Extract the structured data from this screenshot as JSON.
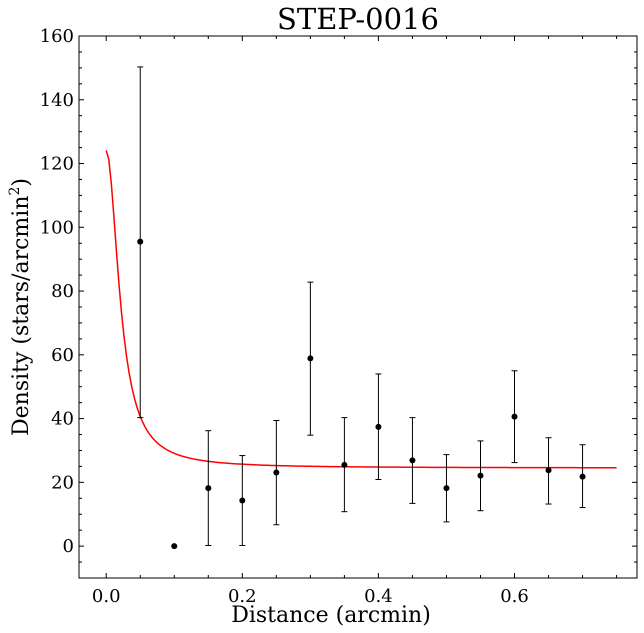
{
  "chart_data": {
    "type": "scatter",
    "title": "STEP-0016",
    "xlabel": "Distance (arcmin)",
    "ylabel_main": "Density (stars/arcmin",
    "ylabel_sup": "2",
    "ylabel_close": ")",
    "xlim": [
      -0.04,
      0.78
    ],
    "ylim": [
      -10,
      160
    ],
    "xticks": [
      0.0,
      0.2,
      0.4,
      0.6
    ],
    "xtick_labels": [
      "0.0",
      "0.2",
      "0.4",
      "0.6"
    ],
    "yticks": [
      0,
      20,
      40,
      60,
      80,
      100,
      120,
      140,
      160
    ],
    "ytick_labels": [
      "0",
      "20",
      "40",
      "60",
      "80",
      "100",
      "120",
      "140",
      "160"
    ],
    "series": [
      {
        "name": "data",
        "color": "#000000",
        "points": [
          {
            "x": 0.05,
            "y": 95.5,
            "lo": 40.3,
            "hi": 150.3
          },
          {
            "x": 0.1,
            "y": 0.0,
            "lo": null,
            "hi": null
          },
          {
            "x": 0.15,
            "y": 18.2,
            "lo": 0.2,
            "hi": 36.2
          },
          {
            "x": 0.2,
            "y": 14.3,
            "lo": 0.2,
            "hi": 28.4
          },
          {
            "x": 0.25,
            "y": 23.1,
            "lo": 6.7,
            "hi": 39.4
          },
          {
            "x": 0.3,
            "y": 58.9,
            "lo": 34.8,
            "hi": 82.8
          },
          {
            "x": 0.35,
            "y": 25.5,
            "lo": 10.8,
            "hi": 40.3
          },
          {
            "x": 0.4,
            "y": 37.4,
            "lo": 20.9,
            "hi": 54.0
          },
          {
            "x": 0.45,
            "y": 26.9,
            "lo": 13.4,
            "hi": 40.3
          },
          {
            "x": 0.5,
            "y": 18.2,
            "lo": 7.6,
            "hi": 28.7
          },
          {
            "x": 0.55,
            "y": 22.1,
            "lo": 11.1,
            "hi": 33.0
          },
          {
            "x": 0.6,
            "y": 40.6,
            "lo": 26.2,
            "hi": 55.0
          },
          {
            "x": 0.65,
            "y": 23.8,
            "lo": 13.2,
            "hi": 34.0
          },
          {
            "x": 0.7,
            "y": 21.8,
            "lo": 12.1,
            "hi": 31.8
          }
        ]
      },
      {
        "name": "fit",
        "color": "#ff0000",
        "model": {
          "background": 24.5,
          "amplitude": 99.6,
          "scale": 0.022,
          "x_start": 0.0,
          "x_end": 0.75
        }
      }
    ]
  }
}
